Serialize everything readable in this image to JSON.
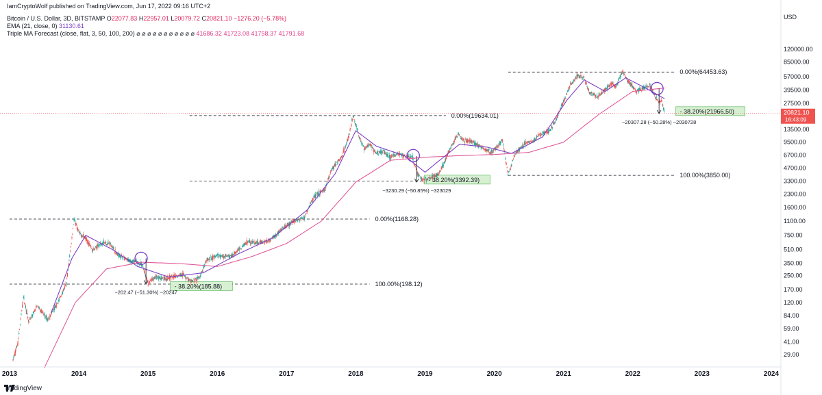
{
  "publisher": "IamCryptoWolf published on TradingView.com, Jun 17, 2022 09:16 UTC+2",
  "legend": {
    "symbol": "Bitcoin / U.S. Dollar, 3D, BITSTAMP",
    "o_label": "O",
    "o": "22077.83",
    "h_label": "H",
    "h": "22957.01",
    "l_label": "L",
    "l": "20079.72",
    "c_label": "C",
    "c": "20821.10",
    "change": "−1276.20 (−5.78%)",
    "ema_label": "EMA (21, close, 0)",
    "ema_value": "31130.61",
    "tma_label": "Triple MA Forecast (close, flat, 3, 50, 100, 200)",
    "tma_dots": "⌀ ⌀ ⌀ ⌀ ⌀ ⌀ ⌀ ⌀ ⌀ ⌀ ⌀",
    "tma_values": [
      "41686.32",
      "41723.08",
      "41758.37",
      "41791.68"
    ]
  },
  "colors": {
    "candle_up": "#26a69a",
    "candle_down": "#ef5350",
    "ema": "#7a3fc4",
    "long_ma": "#e05a9a",
    "fib_box": "#d7f0d2",
    "last_price": "#ef5350"
  },
  "chart_data": {
    "type": "candlestick",
    "instrument": "Bitcoin / U.S. Dollar, 3D, BITSTAMP",
    "y_axis": {
      "label": "USD",
      "scale": "log",
      "ticks": [
        "120000.00",
        "85000.00",
        "57000.00",
        "39500.00",
        "27500.00",
        "20821.10",
        "13500.00",
        "9500.00",
        "6700.00",
        "4700.00",
        "3300.00",
        "2300.00",
        "1600.00",
        "1100.00",
        "750.00",
        "510.00",
        "350.00",
        "250.00",
        "170.00",
        "120.00",
        "84.00",
        "59.00",
        "41.00",
        "29.00"
      ],
      "tick_values": [
        120000,
        85000,
        57000,
        39500,
        27500,
        20821.1,
        13500,
        9500,
        6700,
        4700,
        3300,
        2300,
        1600,
        1100,
        750,
        510,
        350,
        250,
        170,
        120,
        84,
        59,
        41,
        29
      ]
    },
    "x_axis": {
      "ticks": [
        "2013",
        "2014",
        "2015",
        "2016",
        "2017",
        "2018",
        "2019",
        "2020",
        "2021",
        "2022",
        "2023",
        "2024"
      ],
      "tick_values": [
        2013,
        2014,
        2015,
        2016,
        2017,
        2018,
        2019,
        2020,
        2021,
        2022,
        2023,
        2024
      ]
    },
    "last_price": {
      "value": "20821.10",
      "countdown": "16:43:09"
    },
    "price_path": [
      [
        2013.05,
        25
      ],
      [
        2013.12,
        40
      ],
      [
        2013.2,
        140
      ],
      [
        2013.28,
        70
      ],
      [
        2013.4,
        110
      ],
      [
        2013.55,
        75
      ],
      [
        2013.7,
        120
      ],
      [
        2013.82,
        200
      ],
      [
        2013.9,
        700
      ],
      [
        2013.93,
        1168.28
      ],
      [
        2014.0,
        800
      ],
      [
        2014.1,
        700
      ],
      [
        2014.2,
        500
      ],
      [
        2014.35,
        620
      ],
      [
        2014.45,
        600
      ],
      [
        2014.55,
        450
      ],
      [
        2014.7,
        380
      ],
      [
        2014.85,
        360
      ],
      [
        2014.92,
        330
      ],
      [
        2015.0,
        200
      ],
      [
        2015.1,
        240
      ],
      [
        2015.25,
        230
      ],
      [
        2015.5,
        260
      ],
      [
        2015.62,
        210
      ],
      [
        2015.75,
        240
      ],
      [
        2015.85,
        380
      ],
      [
        2016.0,
        430
      ],
      [
        2016.2,
        420
      ],
      [
        2016.45,
        650
      ],
      [
        2016.55,
        600
      ],
      [
        2016.75,
        650
      ],
      [
        2016.95,
        900
      ],
      [
        2017.1,
        1100
      ],
      [
        2017.25,
        1200
      ],
      [
        2017.4,
        2200
      ],
      [
        2017.55,
        2600
      ],
      [
        2017.65,
        4500
      ],
      [
        2017.8,
        6500
      ],
      [
        2017.9,
        11000
      ],
      [
        2017.96,
        19634.01
      ],
      [
        2018.05,
        11000
      ],
      [
        2018.12,
        8000
      ],
      [
        2018.2,
        9000
      ],
      [
        2018.3,
        7000
      ],
      [
        2018.4,
        7500
      ],
      [
        2018.5,
        6300
      ],
      [
        2018.6,
        7000
      ],
      [
        2018.72,
        6400
      ],
      [
        2018.82,
        6300
      ],
      [
        2018.88,
        4200
      ],
      [
        2018.96,
        3392.39
      ],
      [
        2019.05,
        3500
      ],
      [
        2019.2,
        4000
      ],
      [
        2019.35,
        7500
      ],
      [
        2019.48,
        12000
      ],
      [
        2019.55,
        10000
      ],
      [
        2019.7,
        9500
      ],
      [
        2019.8,
        8500
      ],
      [
        2019.95,
        7200
      ],
      [
        2020.05,
        8500
      ],
      [
        2020.12,
        10000
      ],
      [
        2020.2,
        3850.0
      ],
      [
        2020.3,
        7000
      ],
      [
        2020.45,
        9300
      ],
      [
        2020.55,
        9500
      ],
      [
        2020.65,
        11500
      ],
      [
        2020.8,
        13000
      ],
      [
        2020.9,
        18000
      ],
      [
        2021.0,
        29000
      ],
      [
        2021.1,
        45000
      ],
      [
        2021.2,
        58000
      ],
      [
        2021.3,
        55000
      ],
      [
        2021.38,
        36000
      ],
      [
        2021.5,
        33000
      ],
      [
        2021.6,
        40000
      ],
      [
        2021.7,
        47000
      ],
      [
        2021.76,
        43000
      ],
      [
        2021.85,
        64453.63
      ],
      [
        2021.95,
        48000
      ],
      [
        2022.05,
        38000
      ],
      [
        2022.15,
        42000
      ],
      [
        2022.25,
        45000
      ],
      [
        2022.35,
        30000
      ],
      [
        2022.42,
        29000
      ],
      [
        2022.46,
        20821.1
      ]
    ],
    "ema_label": "EMA (21, close, 0)",
    "ema_path": [
      [
        2013.6,
        90
      ],
      [
        2013.9,
        400
      ],
      [
        2014.1,
        750
      ],
      [
        2014.5,
        500
      ],
      [
        2014.85,
        320
      ],
      [
        2015.3,
        240
      ],
      [
        2015.8,
        270
      ],
      [
        2016.3,
        450
      ],
      [
        2016.8,
        700
      ],
      [
        2017.3,
        1500
      ],
      [
        2017.7,
        4000
      ],
      [
        2018.0,
        13000
      ],
      [
        2018.3,
        8500
      ],
      [
        2018.7,
        6600
      ],
      [
        2019.0,
        4200
      ],
      [
        2019.5,
        9000
      ],
      [
        2019.9,
        8300
      ],
      [
        2020.25,
        7000
      ],
      [
        2020.7,
        11000
      ],
      [
        2021.05,
        30000
      ],
      [
        2021.3,
        52000
      ],
      [
        2021.6,
        38000
      ],
      [
        2021.9,
        55000
      ],
      [
        2022.2,
        41000
      ],
      [
        2022.46,
        31130.61
      ]
    ],
    "long_ma_label": "Triple MA Forecast (close, flat, 3, 50, 100, 200)",
    "long_ma_path": [
      [
        2013.5,
        20
      ],
      [
        2013.95,
        120
      ],
      [
        2014.4,
        300
      ],
      [
        2014.9,
        360
      ],
      [
        2015.5,
        345
      ],
      [
        2016.0,
        320
      ],
      [
        2016.5,
        420
      ],
      [
        2017.0,
        600
      ],
      [
        2017.5,
        1100
      ],
      [
        2018.0,
        3200
      ],
      [
        2018.5,
        5800
      ],
      [
        2019.0,
        6300
      ],
      [
        2019.5,
        6600
      ],
      [
        2020.0,
        6800
      ],
      [
        2020.5,
        7200
      ],
      [
        2021.0,
        9500
      ],
      [
        2021.5,
        20000
      ],
      [
        2022.0,
        38000
      ],
      [
        2022.46,
        41686.32
      ]
    ],
    "fibonacci": [
      {
        "top_label": "0.00%(1168.28)",
        "top": 1168.28,
        "bottom_label": "100.00%(198.12)",
        "bottom": 198.12,
        "x_start": 2013.0,
        "x_end": 2018.2,
        "level_label": "38.20%(185.88)",
        "level": 185.88,
        "box_x": 2015.38
      },
      {
        "top_label": "0.00%(19634.01)",
        "top": 19634.01,
        "bottom_label": "",
        "bottom": 3300,
        "x_start": 2015.6,
        "x_end": 2019.3,
        "level_label": "38.20%(3392.39)",
        "level": 3392.39,
        "box_x": 2019.05
      },
      {
        "top_label": "0.00%(64453.63)",
        "top": 64453.63,
        "bottom_label": "100.00%(3850.00)",
        "bottom": 3850.0,
        "x_start": 2020.2,
        "x_end": 2022.6,
        "level_label": "38.20%(21966.50)",
        "level": 21966.5,
        "box_x": 2022.68
      }
    ],
    "drops": [
      {
        "label": "−202.47 (−51.30%) −20247",
        "x": 2014.97,
        "from": 400,
        "to": 200
      },
      {
        "label": "−3230.29 (−50.85%) −323029",
        "x": 2018.88,
        "from": 6500,
        "to": 3200
      },
      {
        "label": "−20307.28 (−50.28%) −2030728",
        "x": 2022.38,
        "from": 41000,
        "to": 20800
      }
    ],
    "circles": [
      {
        "x": 2014.9,
        "y": 400
      },
      {
        "x": 2018.83,
        "y": 6600
      },
      {
        "x": 2022.35,
        "y": 41000
      }
    ]
  },
  "footer": {
    "brand": "TradingView"
  }
}
